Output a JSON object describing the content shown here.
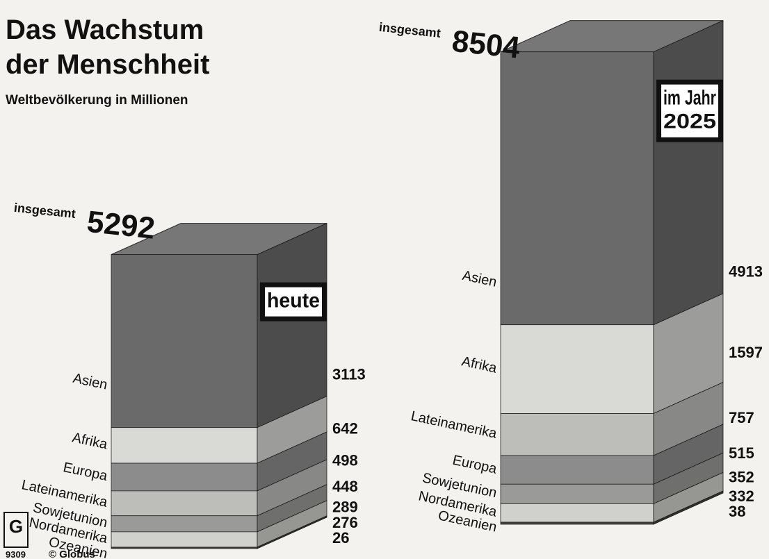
{
  "chart_data": {
    "type": "stacked-block",
    "title": [
      "Das Wachstum",
      "der Menschheit"
    ],
    "subtitle": "Weltbevölkerung in Millionen",
    "source": "© Globus",
    "code": "9309",
    "stacks": [
      {
        "name": [
          "heute"
        ],
        "total_label": "insgesamt",
        "total": 5292,
        "categories": [
          "Asien",
          "Afrika",
          "Europa",
          "Lateinamerika",
          "Sowjetunion",
          "Nordamerika",
          "Ozeanien"
        ],
        "values": [
          3113,
          642,
          498,
          448,
          289,
          276,
          26
        ],
        "colors": [
          "#6a6a6a",
          "#d9d9d6",
          "#8c8c8c",
          "#bdbdba",
          "#9a9a98",
          "#d0d0cc",
          "#444444"
        ]
      },
      {
        "name": [
          "im Jahr",
          "2025"
        ],
        "total_label": "insgesamt",
        "total": 8504,
        "categories": [
          "Asien",
          "Afrika",
          "Lateinamerika",
          "Europa",
          "Sowjetunion",
          "Nordamerika",
          "Ozeanien"
        ],
        "values": [
          4913,
          1597,
          757,
          515,
          352,
          332,
          38
        ],
        "colors": [
          "#6a6a6a",
          "#d9d9d6",
          "#bdbdba",
          "#8c8c8c",
          "#9a9a98",
          "#d0d0cc",
          "#444444"
        ]
      }
    ]
  }
}
